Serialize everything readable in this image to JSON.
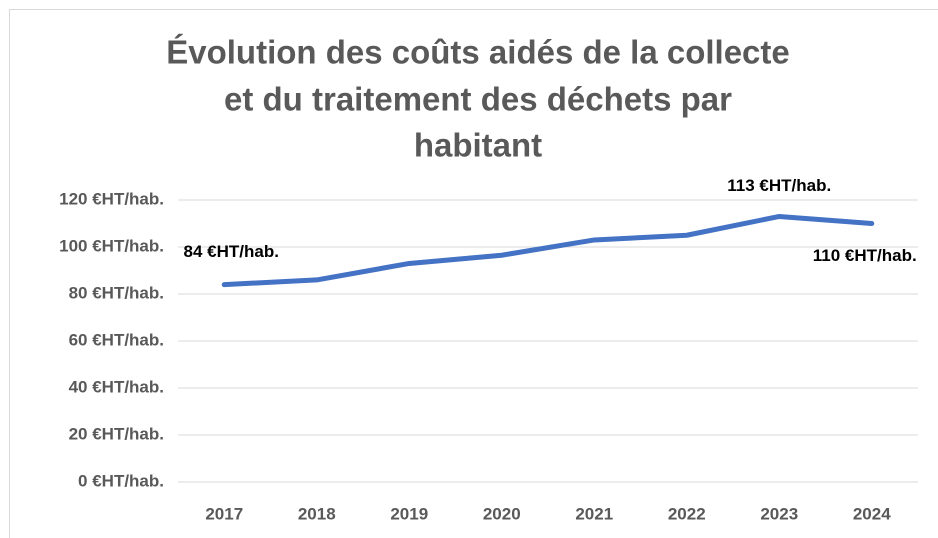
{
  "chart_data": {
    "type": "line",
    "title": [
      "Évolution des coûts aidés de la collecte",
      "et du traitement des déchets par",
      "habitant"
    ],
    "categories": [
      "2017",
      "2018",
      "2019",
      "2020",
      "2021",
      "2022",
      "2023",
      "2024"
    ],
    "series": [
      {
        "color": "#4472c4",
        "values": [
          84,
          86,
          93,
          96.5,
          103,
          105,
          113,
          110
        ],
        "value_labels": [
          "84 €HT/hab.",
          null,
          null,
          null,
          null,
          null,
          "113 €HT/hab.",
          "110 €HT/hab."
        ]
      }
    ],
    "ylim": [
      0,
      120
    ],
    "yticks": [
      {
        "value": 0,
        "label": "0 €HT/hab."
      },
      {
        "value": 20,
        "label": "20 €HT/hab."
      },
      {
        "value": 40,
        "label": "40 €HT/hab."
      },
      {
        "value": 60,
        "label": "60 €HT/hab."
      },
      {
        "value": 80,
        "label": "80 €HT/hab."
      },
      {
        "value": 100,
        "label": "100 €HT/hab."
      },
      {
        "value": 120,
        "label": "120 €HT/hab."
      }
    ],
    "grid": true
  }
}
